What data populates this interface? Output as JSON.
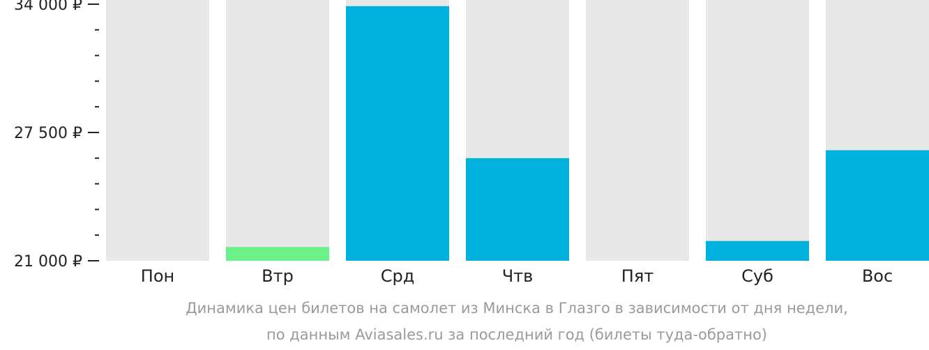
{
  "chart_data": {
    "type": "bar",
    "categories": [
      "Пон",
      "Втр",
      "Срд",
      "Чтв",
      "Пят",
      "Суб",
      "Вос"
    ],
    "values": [
      null,
      21700,
      33900,
      26200,
      null,
      22000,
      26600
    ],
    "ylim": [
      21000,
      34000
    ],
    "yticks": [
      {
        "value": 34000,
        "label": "34 000 ₽"
      },
      {
        "value": 27500,
        "label": "27 500 ₽"
      },
      {
        "value": 21000,
        "label": "21 000 ₽"
      }
    ],
    "minor_ytick_step": 1300,
    "bar_colors": [
      "#00b1de",
      "#6cf08a",
      "#00b1de",
      "#00b1de",
      "#00b1de",
      "#00b1de",
      "#00b1de"
    ],
    "background_bar_color": "#e8e8e8",
    "grid": false,
    "legend": "none",
    "caption": [
      "Динамика цен билетов на самолет из Минска в Глазго в зависимости от дня недели,",
      "по данным Aviasales.ru за последний год (билеты туда-обратно)"
    ]
  }
}
